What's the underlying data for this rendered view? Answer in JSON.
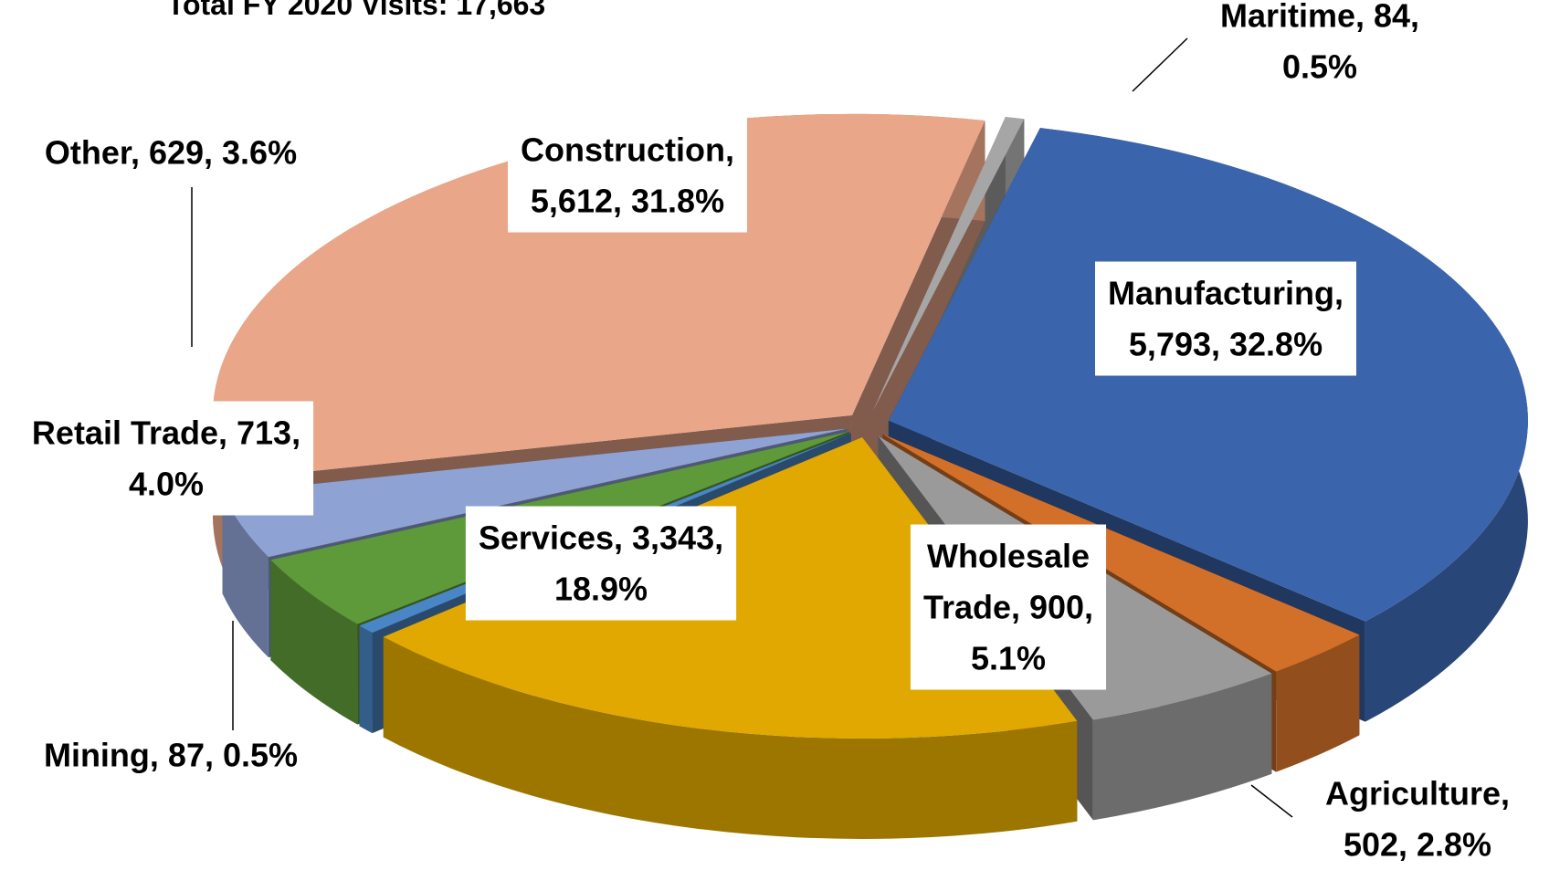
{
  "chart_data": {
    "type": "pie",
    "title": "Total FY 2020 Visits: 17,663",
    "values": [
      84,
      5793,
      502,
      900,
      3343,
      87,
      713,
      629,
      5612
    ],
    "data_labels": [
      [
        "Maritime, 84,",
        "0.5%"
      ],
      [
        "Manufacturing,",
        "5,793, 32.8%"
      ],
      [
        "Agriculture,",
        "502, 2.8%"
      ],
      [
        "Wholesale",
        "Trade, 900,",
        "5.1%"
      ],
      [
        "Services, 3,343,",
        "18.9%"
      ],
      [
        "Mining, 87, 0.5%"
      ],
      [
        "Retail Trade, 713,",
        "4.0%"
      ],
      [
        "Other, 629, 3.6%"
      ],
      [
        "Construction,",
        "5,612, 31.8%"
      ]
    ],
    "colors": [
      "#a6a6a6",
      "#3a64ac",
      "#d2702a",
      "#9a9a9a",
      "#e0a800",
      "#4a86c5",
      "#5f9a3a",
      "#8fa2d4",
      "#eaa688"
    ]
  }
}
